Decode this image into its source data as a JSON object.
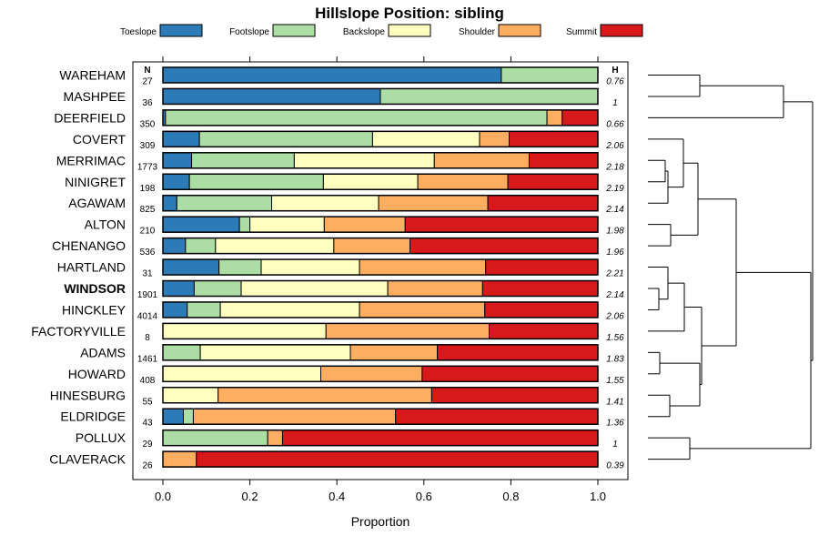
{
  "chart_data": {
    "type": "bar",
    "subtype": "stacked-horizontal-proportion",
    "title": "Hillslope Position: sibling",
    "xlabel": "Proportion",
    "ylabel": "",
    "xlim": [
      0,
      1
    ],
    "xticks": [
      "0.0",
      "0.2",
      "0.4",
      "0.6",
      "0.8",
      "1.0"
    ],
    "xtick_values": [
      0,
      0.2,
      0.4,
      0.6,
      0.8,
      1.0
    ],
    "legend_position": "top",
    "n_header": "N",
    "h_header": "H",
    "classes": [
      {
        "name": "Toeslope",
        "color": "#2c7bb6"
      },
      {
        "name": "Footslope",
        "color": "#abdda4"
      },
      {
        "name": "Backslope",
        "color": "#ffffbf"
      },
      {
        "name": "Shoulder",
        "color": "#fdae61"
      },
      {
        "name": "Summit",
        "color": "#d7191c"
      }
    ],
    "categories": [
      {
        "name": "WAREHAM",
        "n": "27",
        "h": "0.76",
        "bold": false,
        "values": [
          0.778,
          0.222,
          0,
          0,
          0
        ]
      },
      {
        "name": "MASHPEE",
        "n": "36",
        "h": "1",
        "bold": false,
        "values": [
          0.5,
          0.5,
          0,
          0,
          0
        ]
      },
      {
        "name": "DEERFIELD",
        "n": "350",
        "h": "0.66",
        "bold": false,
        "values": [
          0.006,
          0.877,
          0,
          0.035,
          0.082
        ]
      },
      {
        "name": "COVERT",
        "n": "309",
        "h": "2.06",
        "bold": false,
        "values": [
          0.084,
          0.398,
          0.246,
          0.068,
          0.204
        ]
      },
      {
        "name": "MERRIMAC",
        "n": "1773",
        "h": "2.18",
        "bold": false,
        "values": [
          0.066,
          0.236,
          0.322,
          0.218,
          0.158
        ]
      },
      {
        "name": "NINIGRET",
        "n": "198",
        "h": "2.19",
        "bold": false,
        "values": [
          0.061,
          0.308,
          0.217,
          0.207,
          0.207
        ]
      },
      {
        "name": "AGAWAM",
        "n": "825",
        "h": "2.14",
        "bold": false,
        "values": [
          0.032,
          0.218,
          0.246,
          0.251,
          0.253
        ]
      },
      {
        "name": "ALTON",
        "n": "210",
        "h": "1.98",
        "bold": false,
        "values": [
          0.176,
          0.024,
          0.171,
          0.186,
          0.443
        ]
      },
      {
        "name": "CHENANGO",
        "n": "536",
        "h": "1.96",
        "bold": false,
        "values": [
          0.052,
          0.069,
          0.272,
          0.175,
          0.432
        ]
      },
      {
        "name": "HARTLAND",
        "n": "31",
        "h": "2.21",
        "bold": false,
        "values": [
          0.129,
          0.097,
          0.226,
          0.29,
          0.258
        ]
      },
      {
        "name": "WINDSOR",
        "n": "1901",
        "h": "2.14",
        "bold": true,
        "values": [
          0.072,
          0.108,
          0.337,
          0.218,
          0.265
        ]
      },
      {
        "name": "HINCKLEY",
        "n": "4014",
        "h": "2.06",
        "bold": false,
        "values": [
          0.056,
          0.076,
          0.32,
          0.288,
          0.26
        ]
      },
      {
        "name": "FACTORYVILLE",
        "n": "8",
        "h": "1.56",
        "bold": false,
        "values": [
          0,
          0,
          0.375,
          0.375,
          0.25
        ]
      },
      {
        "name": "ADAMS",
        "n": "1461",
        "h": "1.83",
        "bold": false,
        "values": [
          0,
          0.086,
          0.345,
          0.2,
          0.369
        ]
      },
      {
        "name": "HOWARD",
        "n": "408",
        "h": "1.55",
        "bold": false,
        "values": [
          0,
          0,
          0.363,
          0.233,
          0.404
        ]
      },
      {
        "name": "HINESBURG",
        "n": "55",
        "h": "1.41",
        "bold": false,
        "values": [
          0,
          0,
          0.127,
          0.491,
          0.382
        ]
      },
      {
        "name": "ELDRIDGE",
        "n": "43",
        "h": "1.36",
        "bold": false,
        "values": [
          0.047,
          0.023,
          0.0,
          0.465,
          0.465
        ]
      },
      {
        "name": "POLLUX",
        "n": "29",
        "h": "1",
        "bold": false,
        "values": [
          0,
          0.241,
          0,
          0.034,
          0.725
        ]
      },
      {
        "name": "CLAVERACK",
        "n": "26",
        "h": "0.39",
        "bold": false,
        "values": [
          0,
          0,
          0,
          0.077,
          0.923
        ]
      }
    ],
    "dendrogram": "hierarchical clustering of rows shown at right"
  }
}
